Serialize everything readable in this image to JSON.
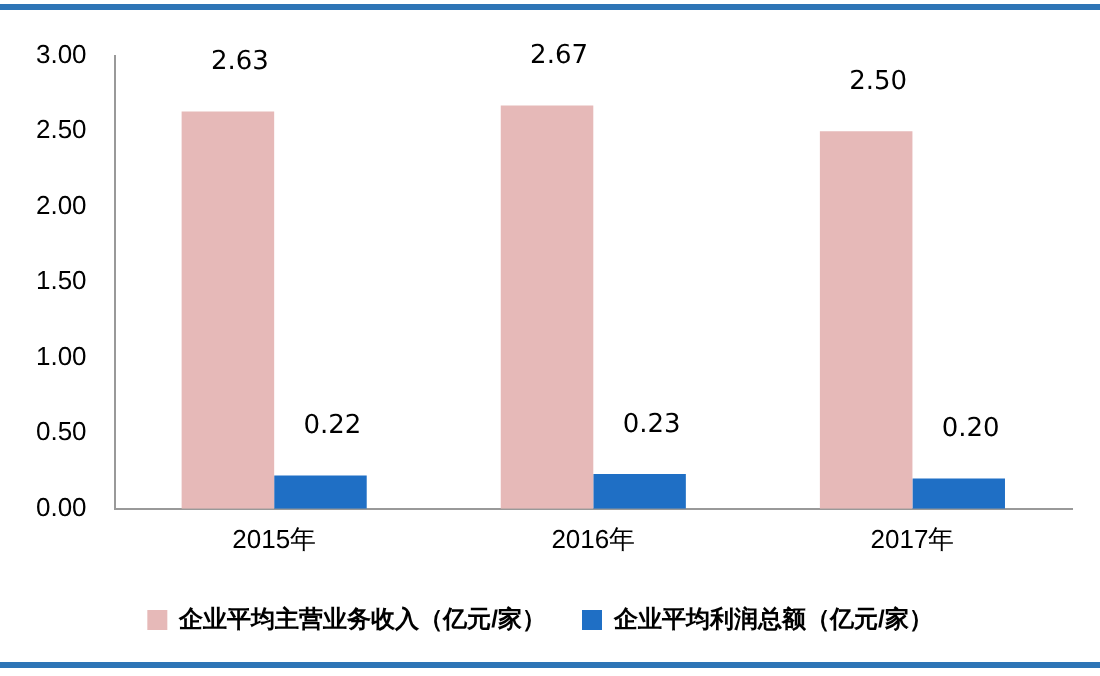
{
  "chart_data": {
    "type": "bar",
    "categories": [
      "2015年",
      "2016年",
      "2017年"
    ],
    "series": [
      {
        "name": "企业平均主营业务收入（亿元/家）",
        "color": "#e6b9b8",
        "values": [
          2.63,
          2.67,
          2.5
        ],
        "value_labels": [
          "2.63",
          "2.67",
          "2.50"
        ]
      },
      {
        "name": "企业平均利润总额（亿元/家）",
        "color": "#1f6fc5",
        "values": [
          0.22,
          0.23,
          0.2
        ],
        "value_labels": [
          "0.22",
          "0.23",
          "0.20"
        ]
      }
    ],
    "ylim": [
      0,
      3
    ],
    "yticks": [
      {
        "value": 0,
        "label": "0.00"
      },
      {
        "value": 0.5,
        "label": "0.50"
      },
      {
        "value": 1,
        "label": "1.00"
      },
      {
        "value": 1.5,
        "label": "1.50"
      },
      {
        "value": 2,
        "label": "2.00"
      },
      {
        "value": 2.5,
        "label": "2.50"
      },
      {
        "value": 3,
        "label": "3.00"
      }
    ],
    "grid": false,
    "legend": "bottom"
  }
}
